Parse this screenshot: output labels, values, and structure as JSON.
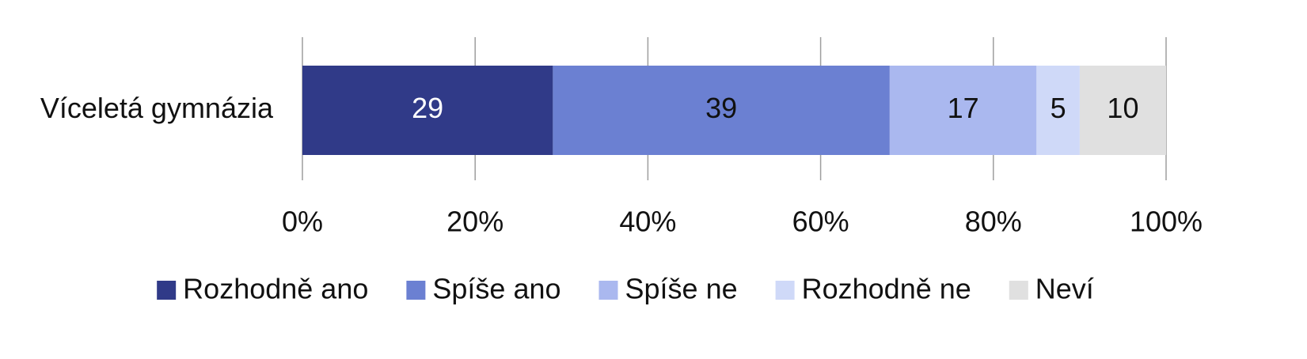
{
  "chart_data": {
    "type": "bar",
    "orientation": "horizontal",
    "stacked": true,
    "categories": [
      "Víceletá gymnázia"
    ],
    "series": [
      {
        "name": "Rozhodně ano",
        "color": "#303a88",
        "label_color": "#ffffff",
        "values": [
          29
        ]
      },
      {
        "name": "Spíše ano",
        "color": "#6b80d2",
        "label_color": "#111111",
        "values": [
          39
        ]
      },
      {
        "name": "Spíše ne",
        "color": "#aab8ef",
        "label_color": "#111111",
        "values": [
          17
        ]
      },
      {
        "name": "Rozhodně ne",
        "color": "#cfd9f8",
        "label_color": "#111111",
        "values": [
          5
        ]
      },
      {
        "name": "Neví",
        "color": "#e0e0e0",
        "label_color": "#111111",
        "values": [
          10
        ]
      }
    ],
    "xlim": [
      0,
      100
    ],
    "xticks": [
      {
        "value": 0,
        "label": "0%"
      },
      {
        "value": 20,
        "label": "20%"
      },
      {
        "value": 40,
        "label": "40%"
      },
      {
        "value": 60,
        "label": "60%"
      },
      {
        "value": 80,
        "label": "80%"
      },
      {
        "value": 100,
        "label": "100%"
      }
    ],
    "grid": true,
    "legend": "bottom"
  }
}
